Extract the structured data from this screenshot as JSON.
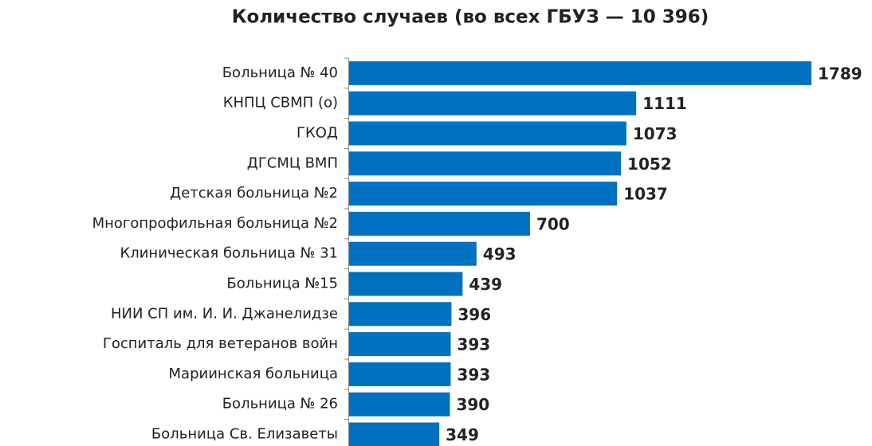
{
  "chart_data": {
    "type": "bar",
    "orientation": "horizontal",
    "title": "Количество случаев (во всех ГБУЗ — 10 396)",
    "categories": [
      "Больница № 40",
      "КНПЦ СВМП (о)",
      "ГКОД",
      "ДГСМЦ ВМП",
      "Детская больница №2",
      "Многопрофильная больница №2",
      "Клиническая больница № 31",
      "Больница №15",
      "НИИ СП им. И. И.  Джанелидзе",
      "Госпиталь  для ветеранов войн",
      "Мариинская больница",
      "Больница № 26",
      "Больница Св. Елизаветы"
    ],
    "values": [
      1789,
      1111,
      1073,
      1052,
      1037,
      700,
      493,
      439,
      396,
      393,
      393,
      390,
      349
    ],
    "color": "#0070c0"
  }
}
